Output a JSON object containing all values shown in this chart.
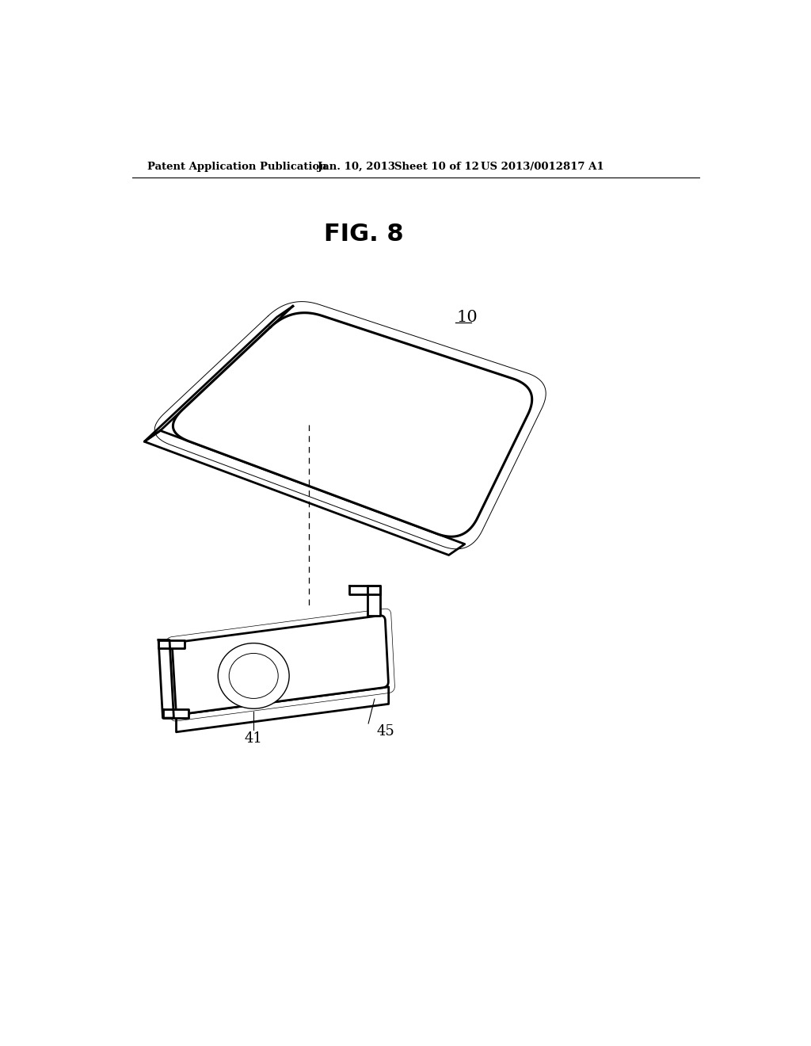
{
  "bg_color": "#ffffff",
  "header_text": "Patent Application Publication",
  "header_date": "Jan. 10, 2013",
  "header_sheet": "Sheet 10 of 12",
  "header_patent": "US 2013/0012817 A1",
  "fig_label": "FIG. 8",
  "label_10": "10",
  "label_41": "41",
  "label_45": "45",
  "line_color": "#000000",
  "lw_outer": 2.0,
  "lw_inner": 1.0,
  "lw_thin": 0.7
}
